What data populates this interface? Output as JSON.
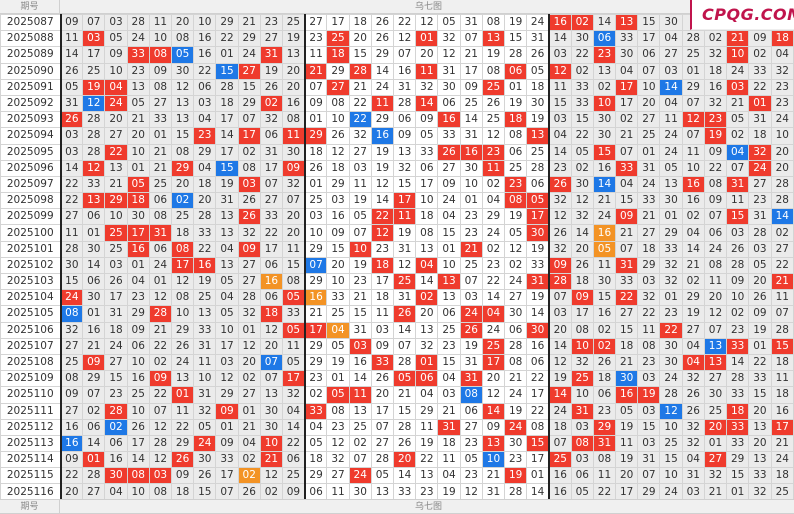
{
  "header": {
    "issue_label": "期号",
    "chart_label": "乌七图"
  },
  "footer": {
    "issue_label": "期号",
    "chart_label": "乌七图"
  },
  "logo": "CPQG.COM",
  "colors": {
    "red": "#ef3b2d",
    "blue": "#1e78e6",
    "orange": "#f39325",
    "zone_gray": "#ebebeb"
  },
  "highlight_legend": {
    "r": "red",
    "b": "blue",
    "o": "orange",
    ".": "none"
  },
  "rows": [
    {
      "issue": "2025087",
      "nums": [
        "09",
        "07",
        "03",
        "28",
        "11",
        "20",
        "10",
        "29",
        "21",
        "23",
        "25",
        "27",
        "17",
        "18",
        "26",
        "22",
        "12",
        "05",
        "31",
        "08",
        "19",
        "24",
        "16",
        "02",
        "14",
        "13",
        "15",
        "30",
        "",
        "",
        "",
        "",
        ""
      ],
      "hl": "......................rr.r......."
    },
    {
      "issue": "2025088",
      "nums": [
        "11",
        "03",
        "05",
        "24",
        "10",
        "08",
        "16",
        "22",
        "29",
        "27",
        "19",
        "23",
        "25",
        "20",
        "26",
        "12",
        "01",
        "32",
        "07",
        "13",
        "15",
        "31",
        "14",
        "30",
        "06",
        "33",
        "17",
        "04",
        "28",
        "02",
        "21",
        "09",
        "18"
      ],
      "hl": ".r..........r...r..r....b.....r.r"
    },
    {
      "issue": "2025089",
      "nums": [
        "14",
        "17",
        "09",
        "33",
        "08",
        "05",
        "16",
        "01",
        "24",
        "31",
        "13",
        "11",
        "18",
        "15",
        "29",
        "07",
        "20",
        "12",
        "21",
        "19",
        "28",
        "26",
        "03",
        "22",
        "23",
        "30",
        "06",
        "27",
        "25",
        "32",
        "10",
        "02",
        "04"
      ],
      "hl": "...rrb...r..r...........r.....r"
    },
    {
      "issue": "2025090",
      "nums": [
        "26",
        "25",
        "10",
        "23",
        "09",
        "30",
        "22",
        "15",
        "27",
        "19",
        "20",
        "21",
        "29",
        "28",
        "14",
        "16",
        "11",
        "31",
        "17",
        "08",
        "06",
        "05",
        "12",
        "02",
        "13",
        "04",
        "07",
        "03",
        "01",
        "18",
        "24",
        "33",
        "32"
      ],
      "hl": ".......br..r.r..r...r.r.........."
    },
    {
      "issue": "2025091",
      "nums": [
        "05",
        "19",
        "04",
        "13",
        "08",
        "12",
        "06",
        "28",
        "15",
        "26",
        "20",
        "07",
        "27",
        "21",
        "24",
        "31",
        "32",
        "30",
        "09",
        "25",
        "01",
        "18",
        "11",
        "33",
        "02",
        "17",
        "10",
        "14",
        "29",
        "16",
        "03",
        "22",
        "23"
      ],
      "hl": ".rr.........r......r.....r.b..r.."
    },
    {
      "issue": "2025092",
      "nums": [
        "31",
        "12",
        "24",
        "05",
        "27",
        "13",
        "03",
        "18",
        "29",
        "02",
        "16",
        "09",
        "08",
        "22",
        "11",
        "28",
        "14",
        "06",
        "25",
        "26",
        "19",
        "30",
        "15",
        "33",
        "10",
        "17",
        "20",
        "04",
        "07",
        "32",
        "21",
        "01",
        "23"
      ],
      "hl": ".br......r....r.r.......r......r"
    },
    {
      "issue": "2025093",
      "nums": [
        "26",
        "28",
        "20",
        "21",
        "33",
        "13",
        "04",
        "17",
        "07",
        "32",
        "08",
        "01",
        "10",
        "22",
        "29",
        "06",
        "09",
        "16",
        "14",
        "25",
        "18",
        "19",
        "03",
        "15",
        "30",
        "02",
        "27",
        "11",
        "12",
        "23",
        "05",
        "31",
        "24"
      ],
      "hl": "r............b...r..r.......rr...r"
    },
    {
      "issue": "2025094",
      "nums": [
        "03",
        "28",
        "27",
        "20",
        "01",
        "15",
        "23",
        "14",
        "17",
        "06",
        "11",
        "29",
        "26",
        "32",
        "16",
        "09",
        "05",
        "33",
        "31",
        "12",
        "08",
        "13",
        "04",
        "22",
        "30",
        "21",
        "25",
        "24",
        "07",
        "19",
        "02",
        "18",
        "10"
      ],
      "hl": "......r.r.rr..b......r.......r..."
    },
    {
      "issue": "2025095",
      "nums": [
        "03",
        "28",
        "22",
        "10",
        "21",
        "08",
        "29",
        "17",
        "02",
        "31",
        "30",
        "18",
        "12",
        "27",
        "19",
        "13",
        "33",
        "26",
        "16",
        "23",
        "06",
        "25",
        "14",
        "05",
        "15",
        "07",
        "01",
        "24",
        "11",
        "09",
        "04",
        "32",
        "20"
      ],
      "hl": "..r..............rrr....r.....br."
    },
    {
      "issue": "2025096",
      "nums": [
        "14",
        "12",
        "13",
        "01",
        "21",
        "29",
        "04",
        "15",
        "08",
        "17",
        "09",
        "26",
        "18",
        "03",
        "19",
        "32",
        "06",
        "27",
        "30",
        "11",
        "25",
        "28",
        "23",
        "02",
        "16",
        "33",
        "31",
        "05",
        "10",
        "22",
        "07",
        "24",
        "20"
      ],
      "hl": ".r...r.b..r........r.....r.....r.."
    },
    {
      "issue": "2025097",
      "nums": [
        "22",
        "33",
        "21",
        "05",
        "25",
        "20",
        "18",
        "19",
        "03",
        "07",
        "32",
        "01",
        "29",
        "11",
        "12",
        "15",
        "17",
        "09",
        "10",
        "02",
        "23",
        "06",
        "26",
        "30",
        "14",
        "04",
        "24",
        "13",
        "16",
        "08",
        "31",
        "27",
        "28"
      ],
      "hl": "...r....r...........r.r.b...r.r.."
    },
    {
      "issue": "2025098",
      "nums": [
        "22",
        "13",
        "29",
        "18",
        "06",
        "02",
        "20",
        "31",
        "26",
        "27",
        "07",
        "25",
        "03",
        "19",
        "14",
        "17",
        "10",
        "24",
        "01",
        "04",
        "08",
        "05",
        "32",
        "12",
        "21",
        "15",
        "33",
        "30",
        "16",
        "09",
        "11",
        "23",
        "28"
      ],
      "hl": ".rrr.b.........r....rr..........."
    },
    {
      "issue": "2025099",
      "nums": [
        "27",
        "06",
        "10",
        "30",
        "08",
        "25",
        "28",
        "13",
        "26",
        "33",
        "20",
        "03",
        "16",
        "05",
        "22",
        "11",
        "18",
        "04",
        "23",
        "29",
        "19",
        "17",
        "12",
        "32",
        "24",
        "09",
        "21",
        "01",
        "02",
        "07",
        "15",
        "31",
        "14"
      ],
      "hl": "........r.....rr.....r...r....r.b"
    },
    {
      "issue": "2025100",
      "nums": [
        "11",
        "01",
        "25",
        "17",
        "31",
        "18",
        "33",
        "13",
        "32",
        "22",
        "20",
        "10",
        "09",
        "07",
        "12",
        "19",
        "08",
        "15",
        "23",
        "24",
        "05",
        "30",
        "26",
        "14",
        "16",
        "21",
        "27",
        "29",
        "04",
        "06",
        "03",
        "28",
        "02"
      ],
      "hl": "..rrr.........r......r..o........"
    },
    {
      "issue": "2025101",
      "nums": [
        "28",
        "30",
        "25",
        "16",
        "06",
        "08",
        "22",
        "04",
        "09",
        "17",
        "11",
        "29",
        "15",
        "10",
        "23",
        "31",
        "13",
        "01",
        "21",
        "02",
        "12",
        "19",
        "32",
        "20",
        "05",
        "07",
        "18",
        "33",
        "14",
        "24",
        "26",
        "03",
        "27"
      ],
      "hl": "...r.r..r....r....r.....o........"
    },
    {
      "issue": "2025102",
      "nums": [
        "30",
        "14",
        "03",
        "01",
        "24",
        "17",
        "16",
        "13",
        "27",
        "06",
        "15",
        "07",
        "20",
        "19",
        "18",
        "12",
        "04",
        "10",
        "25",
        "23",
        "02",
        "33",
        "09",
        "26",
        "11",
        "31",
        "29",
        "32",
        "21",
        "08",
        "28",
        "05",
        "22"
      ],
      "hl": ".....rr....b..r.r.....r..r......."
    },
    {
      "issue": "2025103",
      "nums": [
        "15",
        "06",
        "26",
        "04",
        "01",
        "12",
        "19",
        "05",
        "27",
        "16",
        "08",
        "29",
        "10",
        "23",
        "17",
        "25",
        "14",
        "13",
        "07",
        "22",
        "24",
        "31",
        "28",
        "18",
        "30",
        "33",
        "03",
        "32",
        "02",
        "11",
        "09",
        "20",
        "21"
      ],
      "hl": ".........o.....r.r...rr.........r"
    },
    {
      "issue": "2025104",
      "nums": [
        "24",
        "30",
        "17",
        "23",
        "12",
        "08",
        "25",
        "04",
        "28",
        "06",
        "05",
        "16",
        "33",
        "21",
        "18",
        "31",
        "02",
        "13",
        "03",
        "14",
        "27",
        "19",
        "07",
        "09",
        "15",
        "22",
        "32",
        "01",
        "29",
        "20",
        "10",
        "26",
        "11"
      ],
      "hl": "r.........ro....r......r.r......"
    },
    {
      "issue": "2025105",
      "nums": [
        "08",
        "01",
        "31",
        "29",
        "28",
        "10",
        "13",
        "05",
        "32",
        "18",
        "33",
        "21",
        "25",
        "15",
        "11",
        "26",
        "20",
        "06",
        "24",
        "04",
        "30",
        "14",
        "03",
        "17",
        "16",
        "27",
        "22",
        "23",
        "19",
        "12",
        "02",
        "09",
        "07"
      ],
      "hl": "b...r....r.....r..rr.............r"
    },
    {
      "issue": "2025106",
      "nums": [
        "32",
        "16",
        "18",
        "09",
        "21",
        "29",
        "33",
        "10",
        "01",
        "12",
        "05",
        "17",
        "04",
        "31",
        "03",
        "14",
        "13",
        "25",
        "26",
        "24",
        "06",
        "30",
        "20",
        "08",
        "02",
        "15",
        "11",
        "22",
        "27",
        "07",
        "23",
        "19",
        "28"
      ],
      "hl": "..........rro.....r..r.....r....."
    },
    {
      "issue": "2025107",
      "nums": [
        "27",
        "21",
        "24",
        "06",
        "22",
        "26",
        "31",
        "17",
        "12",
        "20",
        "11",
        "29",
        "05",
        "03",
        "09",
        "07",
        "32",
        "23",
        "19",
        "25",
        "28",
        "16",
        "14",
        "10",
        "02",
        "18",
        "08",
        "30",
        "04",
        "13",
        "33",
        "01",
        "15"
      ],
      "hl": ".............r.....r...rr....br.r"
    },
    {
      "issue": "2025108",
      "nums": [
        "25",
        "09",
        "27",
        "10",
        "02",
        "24",
        "11",
        "03",
        "20",
        "07",
        "05",
        "29",
        "19",
        "16",
        "33",
        "28",
        "01",
        "15",
        "31",
        "17",
        "08",
        "06",
        "12",
        "32",
        "26",
        "21",
        "23",
        "30",
        "04",
        "13",
        "14",
        "22",
        "18"
      ],
      "hl": ".r.......b....r.r..r........rr."
    },
    {
      "issue": "2025109",
      "nums": [
        "08",
        "29",
        "15",
        "16",
        "09",
        "13",
        "10",
        "12",
        "02",
        "07",
        "17",
        "23",
        "01",
        "14",
        "26",
        "05",
        "06",
        "04",
        "31",
        "20",
        "21",
        "22",
        "19",
        "25",
        "18",
        "30",
        "03",
        "24",
        "32",
        "27",
        "28",
        "33",
        "11"
      ],
      "hl": "....r.....r....rr.r....r.b......"
    },
    {
      "issue": "2025110",
      "nums": [
        "09",
        "07",
        "23",
        "25",
        "22",
        "01",
        "31",
        "29",
        "27",
        "13",
        "32",
        "02",
        "05",
        "11",
        "20",
        "21",
        "04",
        "03",
        "08",
        "12",
        "24",
        "17",
        "14",
        "10",
        "06",
        "16",
        "19",
        "28",
        "26",
        "30",
        "33",
        "15",
        "18"
      ],
      "hl": ".....r......rr....b...r..rr......"
    },
    {
      "issue": "2025111",
      "nums": [
        "27",
        "02",
        "28",
        "10",
        "07",
        "11",
        "32",
        "09",
        "01",
        "30",
        "04",
        "33",
        "08",
        "13",
        "17",
        "15",
        "29",
        "21",
        "06",
        "14",
        "19",
        "22",
        "24",
        "31",
        "23",
        "05",
        "03",
        "12",
        "26",
        "25",
        "18",
        "20",
        "16"
      ],
      "hl": "..r....r...r.......r...r...b..r.."
    },
    {
      "issue": "2025112",
      "nums": [
        "16",
        "06",
        "02",
        "26",
        "12",
        "22",
        "05",
        "01",
        "21",
        "30",
        "14",
        "04",
        "23",
        "25",
        "07",
        "28",
        "11",
        "31",
        "27",
        "09",
        "24",
        "08",
        "18",
        "03",
        "29",
        "19",
        "15",
        "10",
        "32",
        "20",
        "33",
        "13",
        "17"
      ],
      "hl": "..b..............r..r...r....rr.r."
    },
    {
      "issue": "2025113",
      "nums": [
        "16",
        "14",
        "06",
        "17",
        "28",
        "29",
        "24",
        "09",
        "04",
        "10",
        "22",
        "05",
        "12",
        "02",
        "27",
        "26",
        "19",
        "18",
        "23",
        "13",
        "30",
        "15",
        "07",
        "08",
        "31",
        "11",
        "03",
        "25",
        "32",
        "01",
        "33",
        "20",
        "21"
      ],
      "hl": "b.....r..r.........r.r.rr........"
    },
    {
      "issue": "2025114",
      "nums": [
        "09",
        "01",
        "16",
        "14",
        "12",
        "26",
        "30",
        "33",
        "02",
        "21",
        "06",
        "18",
        "32",
        "07",
        "28",
        "20",
        "22",
        "11",
        "05",
        "10",
        "23",
        "17",
        "25",
        "03",
        "08",
        "19",
        "31",
        "15",
        "04",
        "27",
        "29",
        "13",
        "24"
      ],
      "hl": ".r...r...r.....r...b..r......r..."
    },
    {
      "issue": "2025115",
      "nums": [
        "22",
        "28",
        "30",
        "08",
        "03",
        "09",
        "26",
        "17",
        "02",
        "12",
        "25",
        "29",
        "27",
        "24",
        "05",
        "14",
        "13",
        "04",
        "23",
        "21",
        "19",
        "01",
        "16",
        "06",
        "11",
        "20",
        "07",
        "10",
        "31",
        "32",
        "15",
        "33",
        "18"
      ],
      "hl": "..rrr...o....r......r............"
    },
    {
      "issue": "2025116",
      "nums": [
        "20",
        "27",
        "04",
        "10",
        "08",
        "18",
        "15",
        "07",
        "26",
        "02",
        "09",
        "06",
        "11",
        "30",
        "13",
        "33",
        "23",
        "19",
        "12",
        "31",
        "28",
        "14",
        "16",
        "05",
        "22",
        "17",
        "29",
        "24",
        "03",
        "21",
        "01",
        "32",
        "25"
      ],
      "hl": "................................."
    }
  ]
}
